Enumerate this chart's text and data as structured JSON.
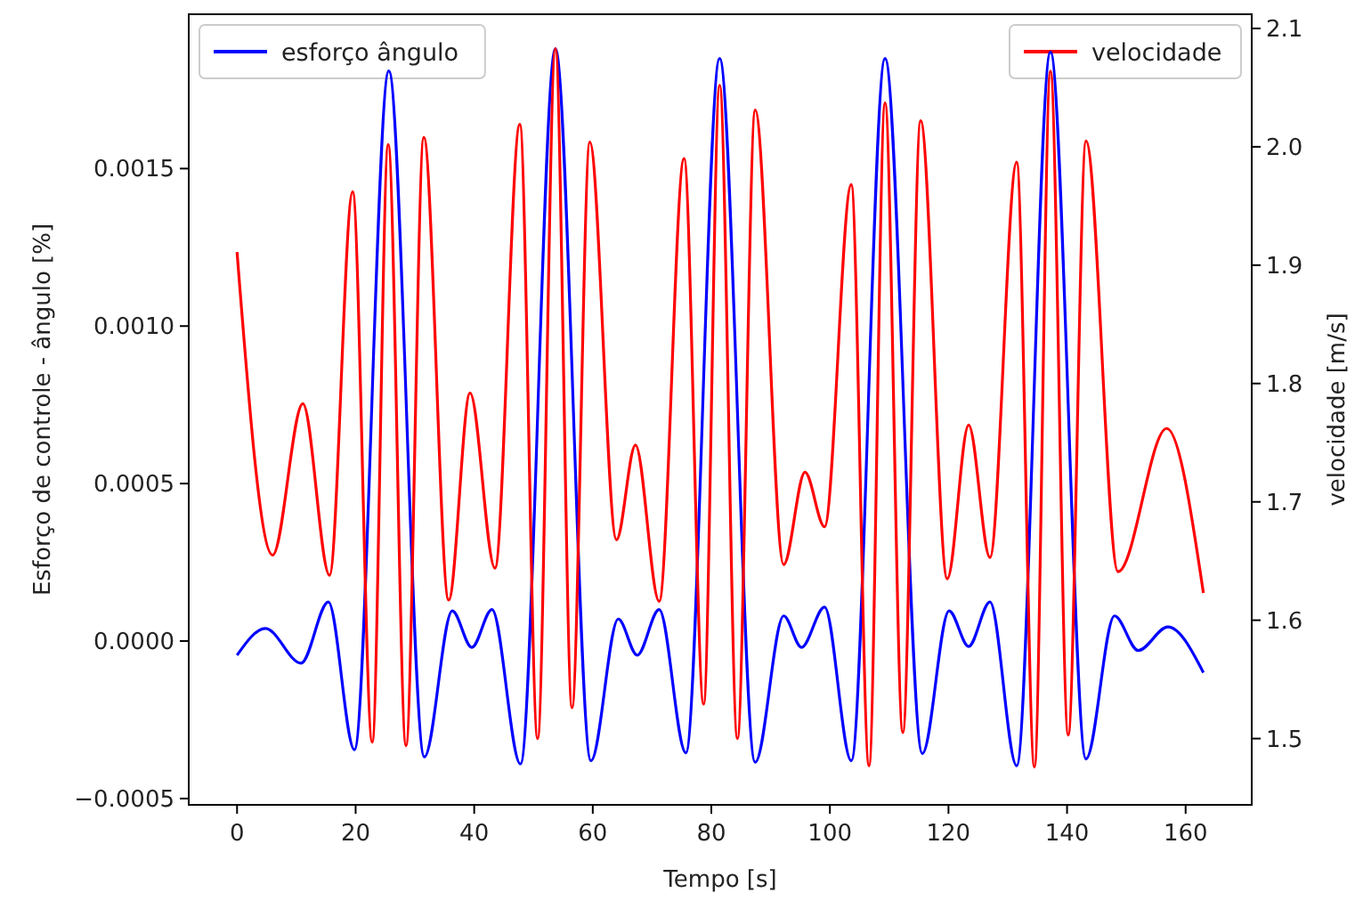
{
  "chart_data": {
    "type": "line",
    "xlabel": "Tempo [s]",
    "ylabel": "Esforço de controle -  ângulo [%]",
    "y2label": "velocidade [m/s]",
    "xlim": [
      -8.15,
      171.15
    ],
    "xticks": [
      0,
      20,
      40,
      60,
      80,
      100,
      120,
      140,
      160
    ],
    "ylim": [
      -0.00052,
      0.00199
    ],
    "yticks": [
      {
        "value": -0.0005,
        "label": "−0.0005"
      },
      {
        "value": 0,
        "label": "0.0000"
      },
      {
        "value": 0.0005,
        "label": "0.0005"
      },
      {
        "value": 0.001,
        "label": "0.0010"
      },
      {
        "value": 0.0015,
        "label": "0.0015"
      }
    ],
    "y2lim": [
      1.444,
      2.112
    ],
    "y2ticks": [
      1.5,
      1.6,
      1.7,
      1.8,
      1.9,
      {
        "value": 2,
        "label": "2.0"
      },
      2.1
    ],
    "grid": false,
    "legend": "top",
    "line_style": "solid",
    "marker": "none",
    "series": [
      {
        "name": "esforço ângulo",
        "color": "#0000ff",
        "x": [
          0,
          4.8,
          10.8,
          15.4,
          19.8,
          25.6,
          31.6,
          36.3,
          39.6,
          43,
          47.8,
          53.7,
          59.7,
          64.3,
          67.5,
          71.2,
          75.7,
          81.4,
          87.4,
          92.2,
          95.2,
          99.1,
          103.6,
          109.3,
          115.6,
          120.1,
          123.4,
          127,
          131.5,
          137.2,
          143.2,
          148,
          152,
          157,
          163
        ],
        "values": [
          -4.5e-05,
          4e-05,
          -7e-05,
          0.000124,
          -0.000345,
          0.00181,
          -0.000368,
          9.6e-05,
          -2e-05,
          0.0001,
          -0.00039,
          0.00188,
          -0.00038,
          7e-05,
          -4.5e-05,
          0.0001,
          -0.000355,
          0.00185,
          -0.000385,
          8e-05,
          -2e-05,
          0.000108,
          -0.00038,
          0.00185,
          -0.000357,
          9.6e-05,
          -1.7e-05,
          0.000124,
          -0.000396,
          0.00187,
          -0.000374,
          8e-05,
          -3e-05,
          4.5e-05,
          -0.0001
        ]
      },
      {
        "name": "velocidade",
        "color": "#ff0000",
        "axis": "y2",
        "x": [
          0,
          6,
          11.1,
          15.6,
          19.5,
          22.8,
          25.5,
          28.5,
          31.5,
          35.7,
          39.3,
          43.5,
          47.7,
          50.7,
          53.7,
          56.5,
          59.5,
          64,
          67.2,
          71.2,
          75.4,
          78.7,
          81.4,
          84.4,
          87.4,
          92.2,
          95.8,
          99.1,
          103.6,
          106.6,
          109.3,
          112.3,
          115.3,
          119.8,
          123.4,
          127,
          131.5,
          134.5,
          137.2,
          140.2,
          143.2,
          148.6,
          156.8,
          163
        ],
        "values": [
          1.911,
          1.655,
          1.783,
          1.638,
          1.962,
          1.497,
          2.002,
          1.494,
          2.008,
          1.617,
          1.792,
          1.644,
          2.019,
          1.5,
          2.083,
          1.526,
          2.004,
          1.668,
          1.748,
          1.616,
          1.99,
          1.529,
          2.052,
          1.5,
          2.031,
          1.647,
          1.725,
          1.679,
          1.968,
          1.477,
          2.037,
          1.505,
          2.022,
          1.635,
          1.765,
          1.653,
          1.987,
          1.476,
          2.064,
          1.503,
          2.005,
          1.641,
          1.762,
          1.623
        ]
      }
    ]
  }
}
